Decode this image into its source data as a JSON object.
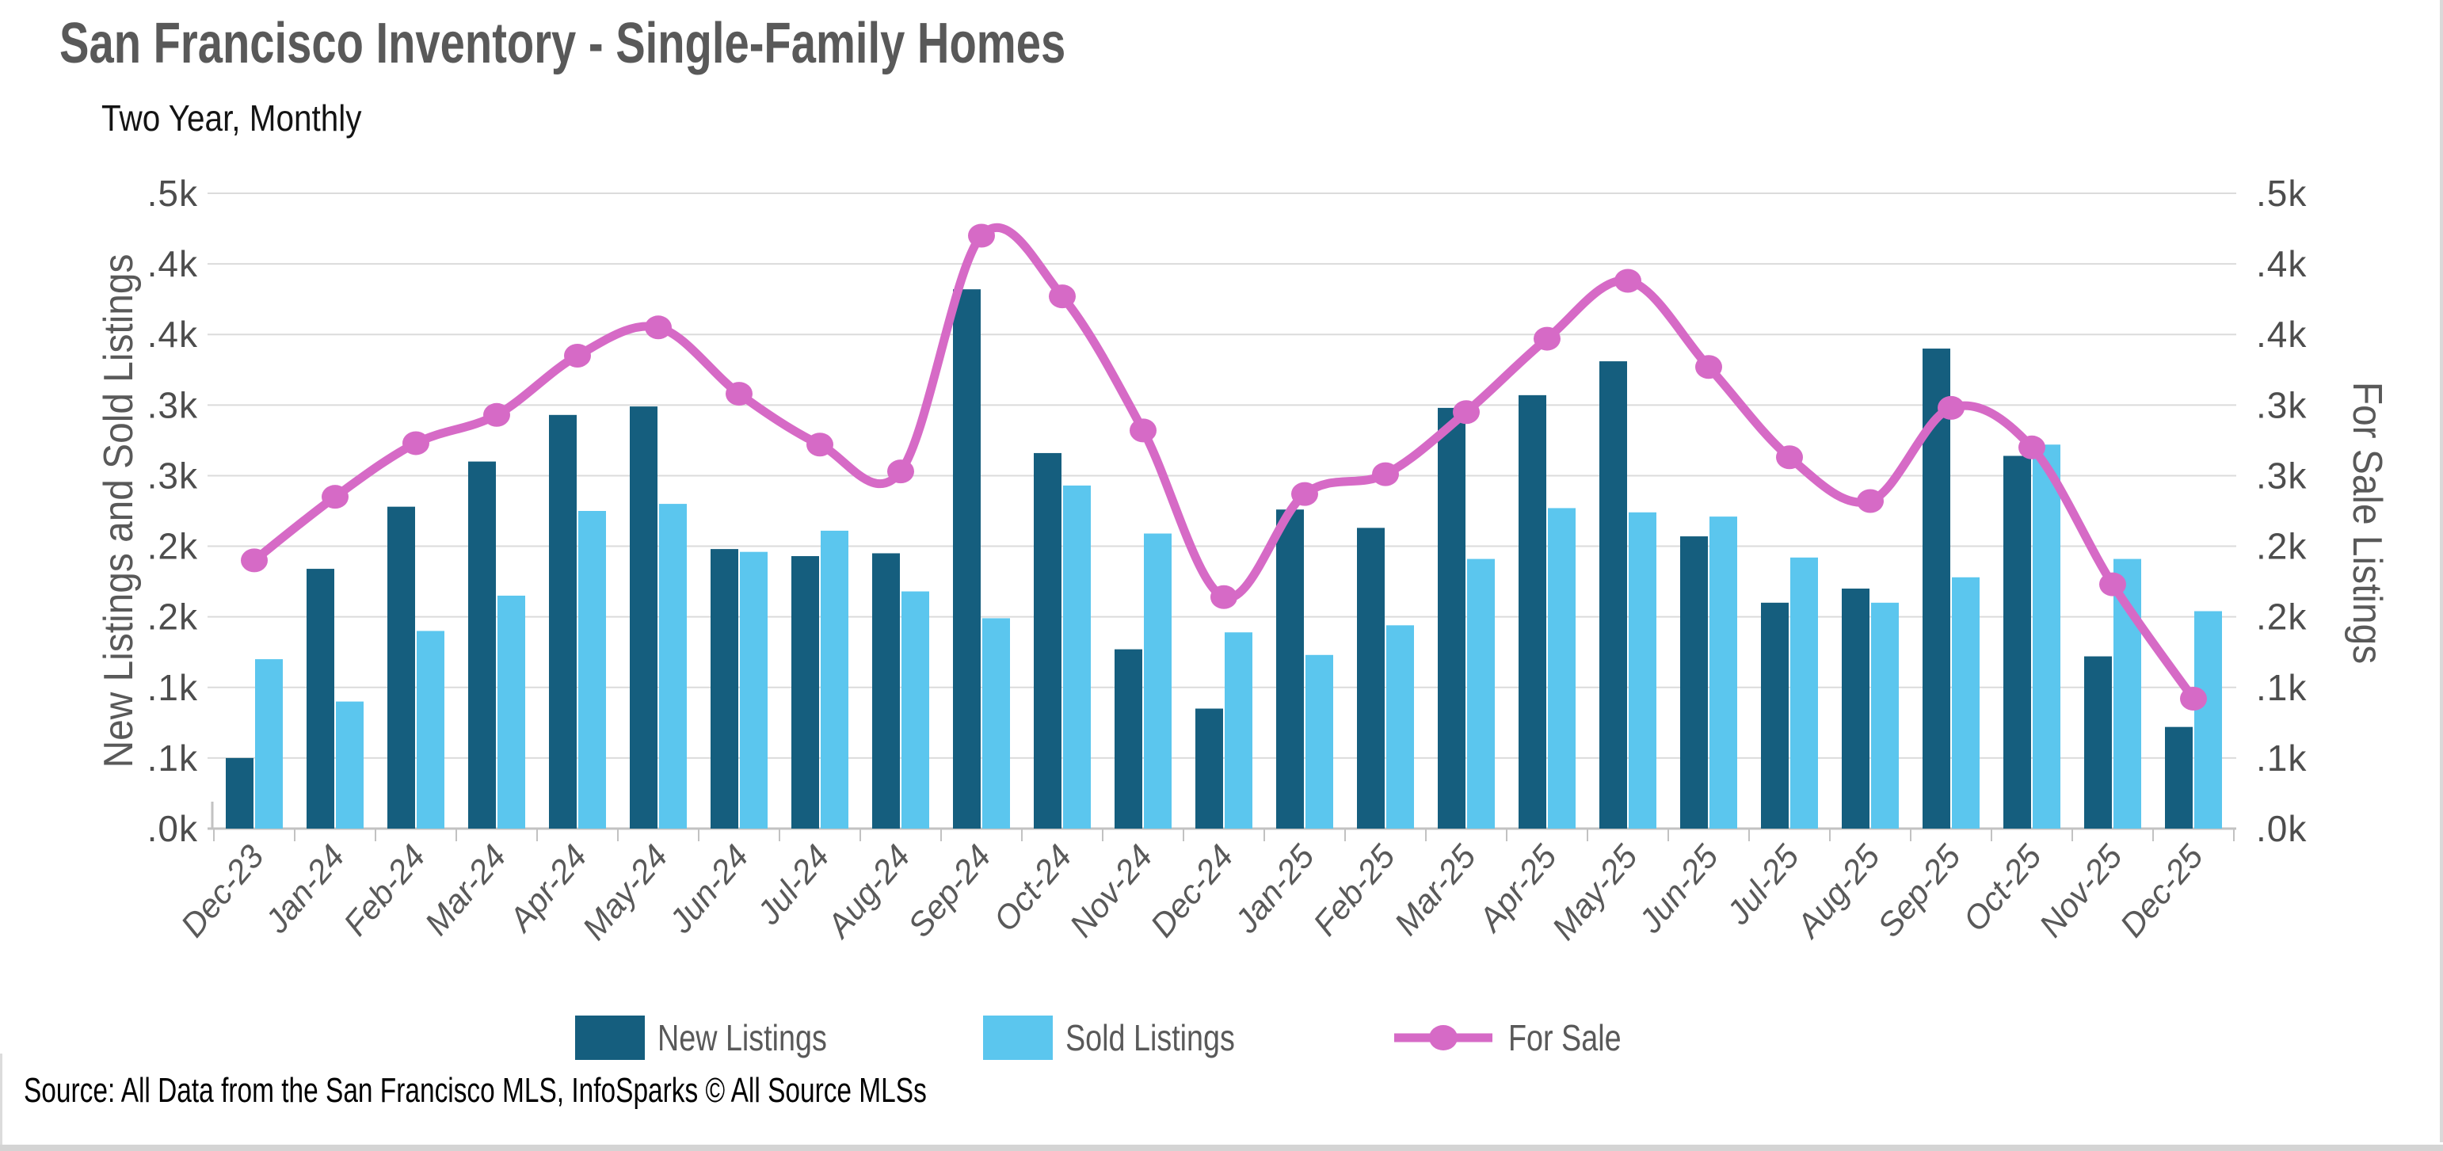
{
  "header": {
    "title": "San Francisco Inventory - Single-Family Homes",
    "subtitle": "Two Year, Monthly"
  },
  "axes": {
    "left_title": "New Listings and Sold Listings",
    "right_title": "For Sale Listings",
    "tick_values": [
      0,
      50,
      100,
      150,
      200,
      250,
      300,
      350,
      400,
      450
    ],
    "tick_labels": [
      ".0k",
      ".1k",
      ".1k",
      ".2k",
      ".2k",
      ".3k",
      ".3k",
      ".4k",
      ".4k",
      ".5k"
    ]
  },
  "legend": {
    "items": [
      {
        "label": "New Listings",
        "type": "bar",
        "color": "#155E7E"
      },
      {
        "label": "Sold Listings",
        "type": "bar",
        "color": "#5BC6EE"
      },
      {
        "label": "For Sale",
        "type": "line",
        "color": "#D66AC6"
      }
    ]
  },
  "source": "Source: All Data from the San Francisco MLS, InfoSparks © All Source MLSs",
  "chart_data": {
    "type": "bar+line",
    "title": "San Francisco Inventory - Single-Family Homes",
    "subtitle": "Two Year, Monthly",
    "ylabel_left": "New Listings and Sold Listings",
    "ylabel_right": "For Sale Listings",
    "ylim": [
      0,
      450
    ],
    "ytick_step": 50,
    "grid": true,
    "legend_position": "bottom",
    "categories": [
      "Dec-23",
      "Jan-24",
      "Feb-24",
      "Mar-24",
      "Apr-24",
      "May-24",
      "Jun-24",
      "Jul-24",
      "Aug-24",
      "Sep-24",
      "Oct-24",
      "Nov-24",
      "Dec-24",
      "Jan-25",
      "Feb-25",
      "Mar-25",
      "Apr-25",
      "May-25",
      "Jun-25",
      "Jul-25",
      "Aug-25",
      "Sep-25",
      "Oct-25",
      "Nov-25",
      "Dec-25"
    ],
    "series": [
      {
        "name": "New Listings",
        "type": "bar",
        "color": "#155E7E",
        "values": [
          50,
          184,
          228,
          260,
          293,
          299,
          198,
          193,
          195,
          382,
          266,
          127,
          85,
          226,
          213,
          298,
          307,
          331,
          207,
          160,
          170,
          340,
          264,
          122,
          72
        ]
      },
      {
        "name": "Sold Listings",
        "type": "bar",
        "color": "#5BC6EE",
        "values": [
          120,
          90,
          140,
          165,
          225,
          230,
          196,
          211,
          168,
          149,
          243,
          209,
          139,
          123,
          144,
          191,
          227,
          224,
          221,
          192,
          160,
          178,
          272,
          191,
          154
        ]
      },
      {
        "name": "For Sale",
        "type": "line",
        "color": "#D66AC6",
        "values": [
          190,
          235,
          273,
          293,
          335,
          355,
          308,
          272,
          253,
          420,
          377,
          282,
          164,
          237,
          251,
          295,
          347,
          388,
          327,
          263,
          232,
          298,
          270,
          173,
          92
        ]
      }
    ]
  }
}
